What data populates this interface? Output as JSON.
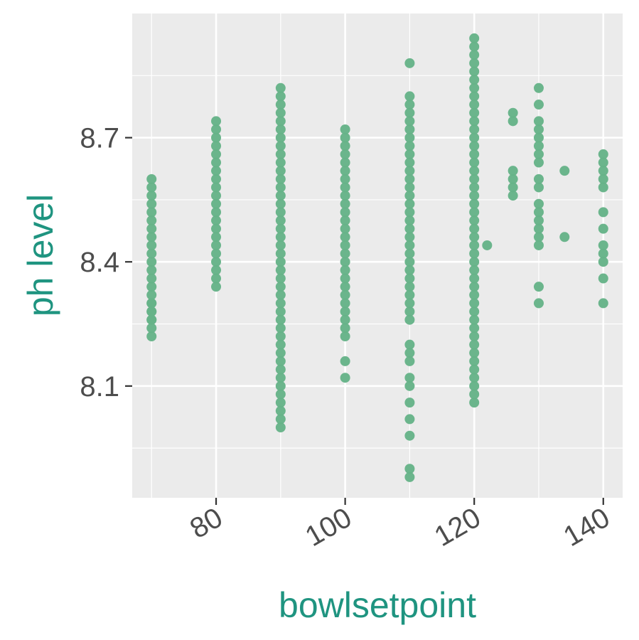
{
  "chart_data": {
    "type": "scatter",
    "title": "",
    "xlabel": "bowlsetpoint",
    "ylabel": "ph level",
    "xlim": [
      67,
      143
    ],
    "ylim": [
      7.83,
      9.0
    ],
    "x_ticks": [
      80,
      100,
      120,
      140
    ],
    "y_ticks": [
      8.1,
      8.4,
      8.7
    ],
    "grid": true,
    "colors": {
      "points": "#66b388",
      "axis_title": "#1f9480",
      "panel": "#ebebeb",
      "grid": "#ffffff",
      "tick_text": "#4d4d4d"
    },
    "columns": [
      {
        "x": 70,
        "y_min": 8.22,
        "y_max": 8.6,
        "extra": []
      },
      {
        "x": 80,
        "y_min": 8.34,
        "y_max": 8.74,
        "extra": []
      },
      {
        "x": 90,
        "y_min": 8.0,
        "y_max": 8.82,
        "extra": []
      },
      {
        "x": 100,
        "y_min": 8.22,
        "y_max": 8.72,
        "extra": [
          8.16,
          8.12
        ]
      },
      {
        "x": 110,
        "y_min": 8.26,
        "y_max": 8.8,
        "extra": [
          8.88,
          8.2,
          8.18,
          8.16,
          8.12,
          8.1,
          8.06,
          8.02,
          7.98,
          7.9,
          7.88
        ]
      },
      {
        "x": 120,
        "y_min": 8.06,
        "y_max": 8.94,
        "extra": []
      }
    ],
    "points": [
      {
        "x": 70,
        "y": 8.3
      },
      {
        "x": 70,
        "y": 8.28
      },
      {
        "x": 70,
        "y": 8.26
      },
      {
        "x": 122,
        "y": 8.44
      },
      {
        "x": 126,
        "y": 8.76
      },
      {
        "x": 126,
        "y": 8.74
      },
      {
        "x": 126,
        "y": 8.62
      },
      {
        "x": 126,
        "y": 8.6
      },
      {
        "x": 126,
        "y": 8.58
      },
      {
        "x": 126,
        "y": 8.56
      },
      {
        "x": 130,
        "y": 8.82
      },
      {
        "x": 130,
        "y": 8.78
      },
      {
        "x": 130,
        "y": 8.74
      },
      {
        "x": 130,
        "y": 8.72
      },
      {
        "x": 130,
        "y": 8.7
      },
      {
        "x": 130,
        "y": 8.68
      },
      {
        "x": 130,
        "y": 8.66
      },
      {
        "x": 130,
        "y": 8.64
      },
      {
        "x": 130,
        "y": 8.6
      },
      {
        "x": 130,
        "y": 8.58
      },
      {
        "x": 130,
        "y": 8.54
      },
      {
        "x": 130,
        "y": 8.52
      },
      {
        "x": 130,
        "y": 8.5
      },
      {
        "x": 130,
        "y": 8.48
      },
      {
        "x": 130,
        "y": 8.46
      },
      {
        "x": 130,
        "y": 8.44
      },
      {
        "x": 130,
        "y": 8.34
      },
      {
        "x": 130,
        "y": 8.3
      },
      {
        "x": 134,
        "y": 8.62
      },
      {
        "x": 134,
        "y": 8.46
      },
      {
        "x": 140,
        "y": 8.66
      },
      {
        "x": 140,
        "y": 8.64
      },
      {
        "x": 140,
        "y": 8.62
      },
      {
        "x": 140,
        "y": 8.6
      },
      {
        "x": 140,
        "y": 8.58
      },
      {
        "x": 140,
        "y": 8.52
      },
      {
        "x": 140,
        "y": 8.48
      },
      {
        "x": 140,
        "y": 8.44
      },
      {
        "x": 140,
        "y": 8.42
      },
      {
        "x": 140,
        "y": 8.4
      },
      {
        "x": 140,
        "y": 8.36
      },
      {
        "x": 140,
        "y": 8.3
      }
    ]
  }
}
